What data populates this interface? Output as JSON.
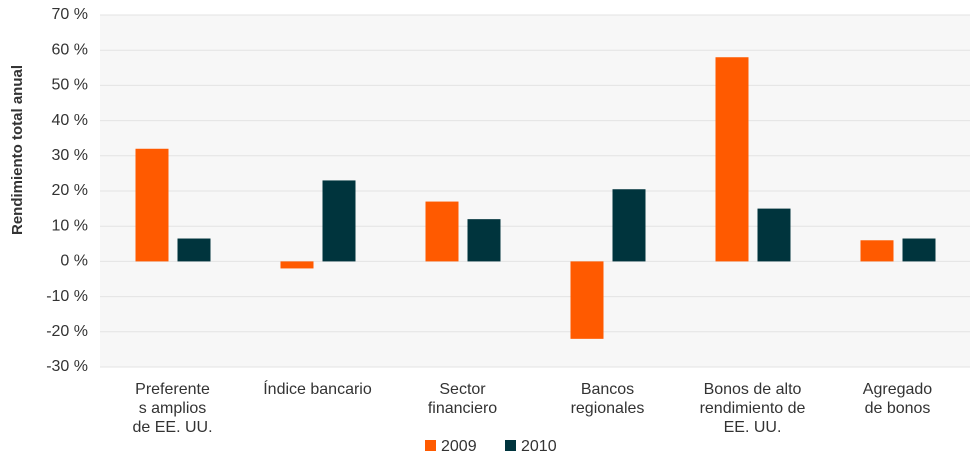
{
  "chart_data": {
    "type": "bar",
    "ylabel": "Rendimiento total anual",
    "categories": [
      [
        "Preferente",
        "s amplios",
        "de EE. UU."
      ],
      [
        "Índice bancario"
      ],
      [
        "Sector",
        "financiero"
      ],
      [
        "Bancos",
        "regionales"
      ],
      [
        "Bonos de alto",
        "rendimiento de",
        "EE. UU."
      ],
      [
        "Agregado",
        "de bonos"
      ]
    ],
    "series": [
      {
        "name": "2009",
        "color": "#ff5a00",
        "values": [
          32,
          -2,
          17,
          -22,
          58,
          6
        ]
      },
      {
        "name": "2010",
        "color": "#00343d",
        "values": [
          6.5,
          23,
          12,
          20.5,
          15,
          6.5
        ]
      }
    ],
    "ylim": [
      -30,
      70
    ],
    "yticks": [
      {
        "value": -30,
        "label": "-30 %"
      },
      {
        "value": -20,
        "label": "-20 %"
      },
      {
        "value": -10,
        "label": "-10 %"
      },
      {
        "value": 0,
        "label": "0 %"
      },
      {
        "value": 10,
        "label": "10 %"
      },
      {
        "value": 20,
        "label": "20 %"
      },
      {
        "value": 30,
        "label": "30 %"
      },
      {
        "value": 40,
        "label": "40 %"
      },
      {
        "value": 50,
        "label": "50 %"
      },
      {
        "value": 60,
        "label": "60 %"
      },
      {
        "value": 70,
        "label": "70 %"
      }
    ],
    "grid": true,
    "legend": "bottom"
  }
}
